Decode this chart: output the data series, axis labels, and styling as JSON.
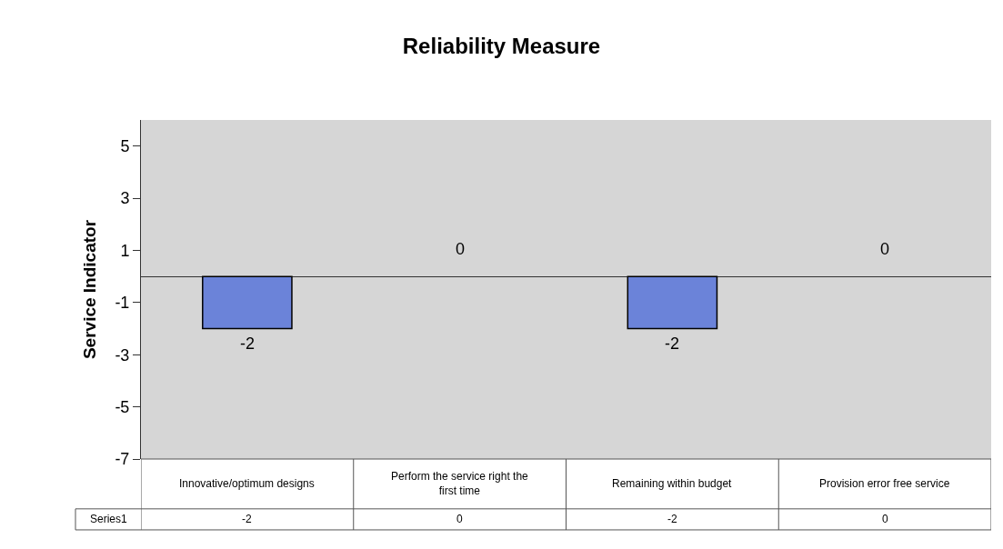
{
  "chart_data": {
    "type": "bar",
    "title": "Reliability Measure",
    "ylabel": "Service Indicator",
    "categories": [
      "Innovative/optimum designs",
      "Perform the service right the first time",
      "Remaining within budget",
      "Provision error free service"
    ],
    "series": [
      {
        "name": "Series1",
        "color": "#6b83d9",
        "values": [
          -2,
          0,
          -2,
          0
        ],
        "value_labels": [
          "-2",
          "0",
          "-2",
          "0"
        ]
      }
    ],
    "ylim": [
      -7,
      6
    ],
    "yticks": [
      5,
      3,
      1,
      -1,
      -3,
      -5,
      -7
    ],
    "grid": false,
    "legend": false
  }
}
